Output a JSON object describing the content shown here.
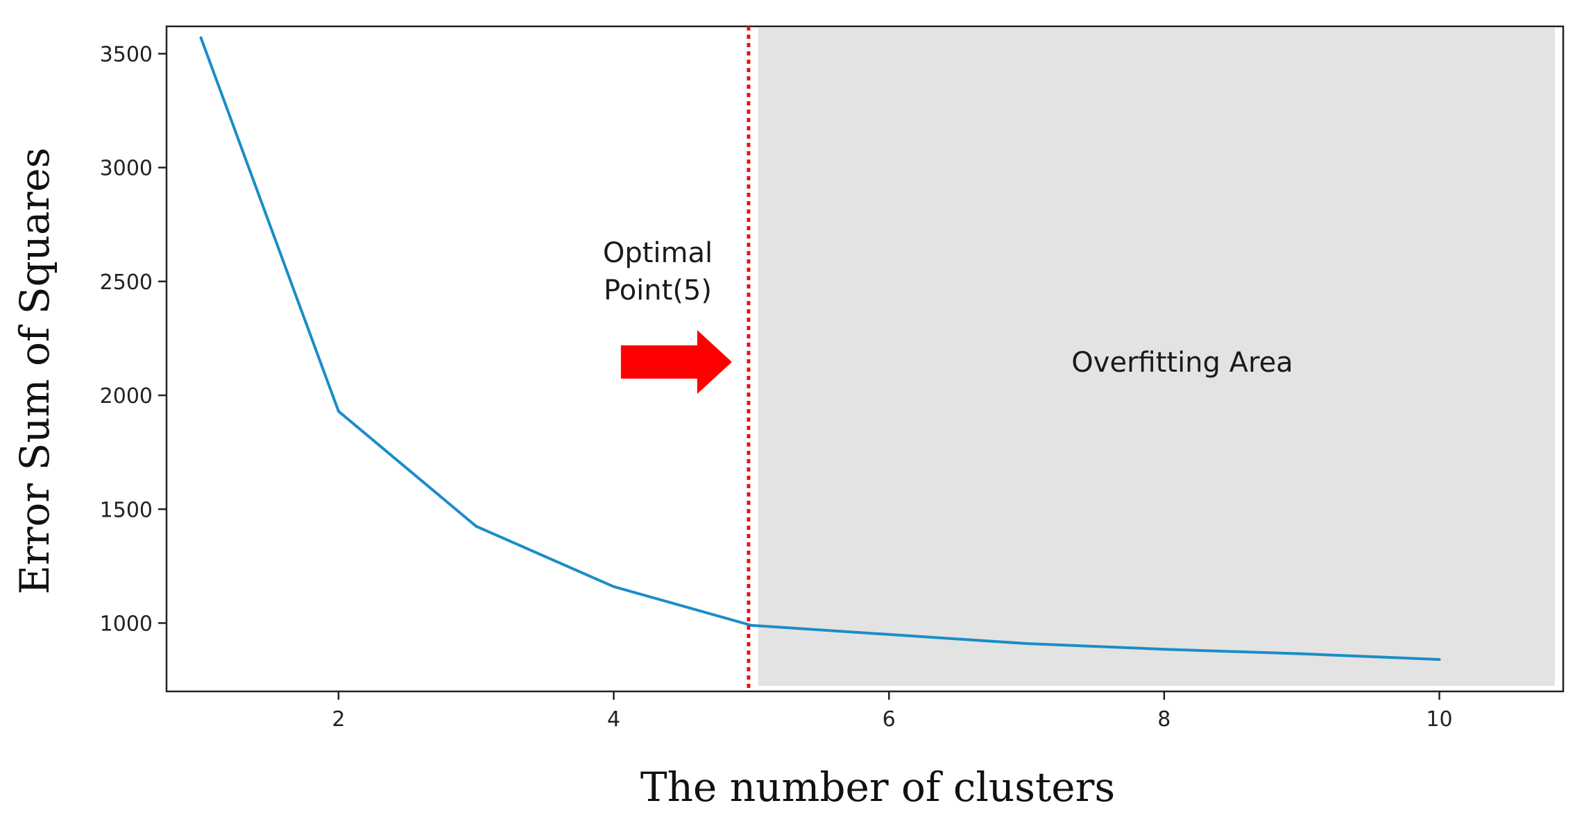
{
  "chart_data": {
    "type": "line",
    "title": "",
    "xlabel": "The number of clusters",
    "ylabel": "Error Sum of Squares",
    "x": [
      1,
      2,
      3,
      4,
      5,
      6,
      7,
      8,
      9,
      10
    ],
    "series": [
      {
        "values": [
          3570,
          1930,
          1425,
          1160,
          990,
          950,
          910,
          885,
          865,
          840
        ],
        "color": "#1a8dc8"
      }
    ],
    "xlim": [
      0.75,
      10.9
    ],
    "ylim": [
      700,
      3620
    ],
    "xticks": [
      2,
      4,
      6,
      8,
      10
    ],
    "yticks": [
      1000,
      1500,
      2000,
      2500,
      3000,
      3500
    ],
    "grid": false,
    "optimal_k": 5,
    "optimal_line_color": "#e8111a",
    "overfit_region": {
      "x_start": 5.05,
      "x_end": 10.9,
      "color": "#e3e3e3"
    },
    "annotations": {
      "optimal_line1": "Optimal",
      "optimal_line2": "Point(5)",
      "overfit_label": "Overfitting Area"
    },
    "arrow_color": "#ff0000"
  }
}
